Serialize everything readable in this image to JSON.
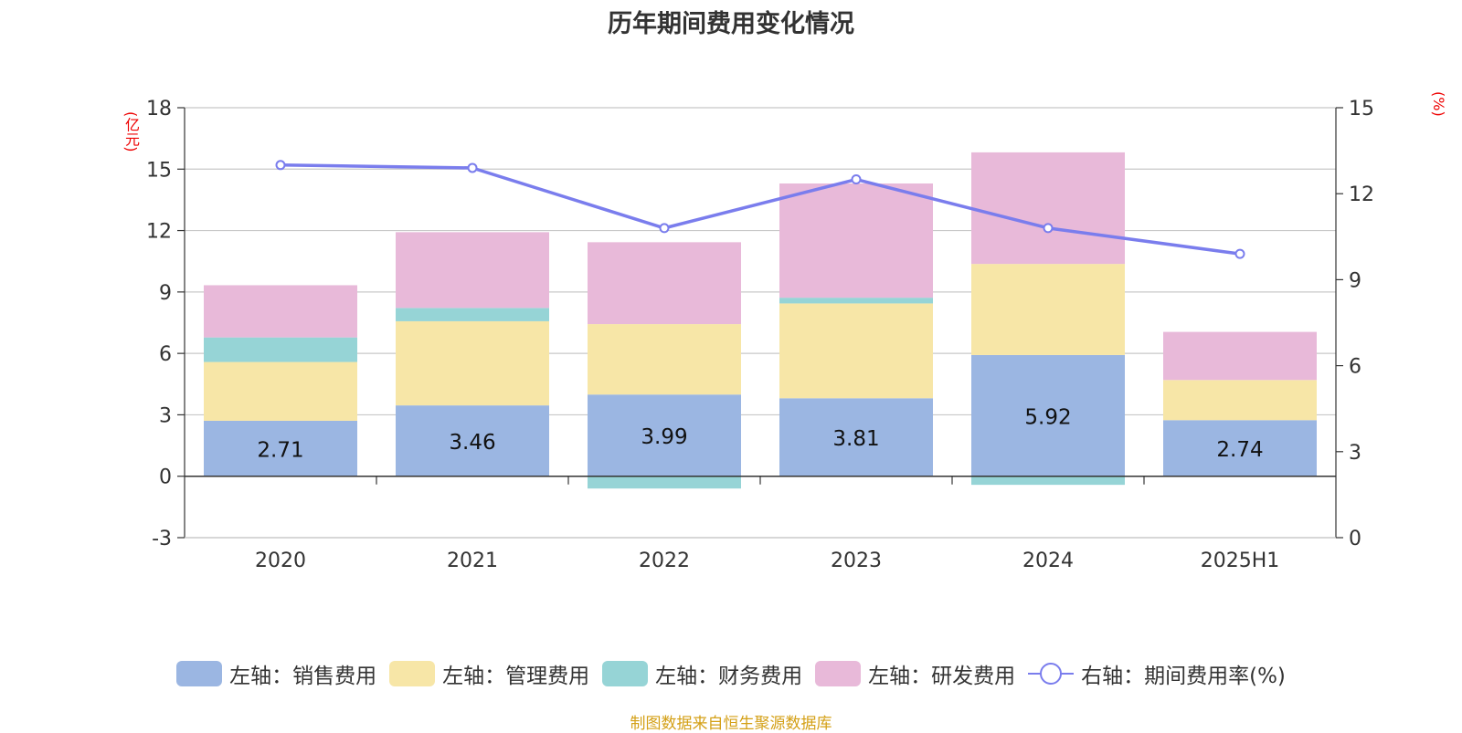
{
  "title": "历年期间费用变化情况",
  "left_unit": "(亿元)",
  "right_unit": "(%)",
  "source": "制图数据来自恒生聚源数据库",
  "colors": {
    "sales": "#9bb6e2",
    "admin": "#f7e6a7",
    "finance": "#96d4d6",
    "rd": "#e8b9d9",
    "rate": "#7a7ded",
    "axis": "#333333",
    "grid": "#c8c8c8"
  },
  "legend": [
    {
      "label": "左轴：销售费用",
      "color": "#9bb6e2",
      "kind": "bar"
    },
    {
      "label": "左轴：管理费用",
      "color": "#f7e6a7",
      "kind": "bar"
    },
    {
      "label": "左轴：财务费用",
      "color": "#96d4d6",
      "kind": "bar"
    },
    {
      "label": "左轴：研发费用",
      "color": "#e8b9d9",
      "kind": "bar"
    },
    {
      "label": "右轴：期间费用率(%)",
      "color": "#7a7ded",
      "kind": "line"
    }
  ],
  "chart_data": {
    "type": "bar",
    "stacked": true,
    "title": "历年期间费用变化情况",
    "categories": [
      "2020",
      "2021",
      "2022",
      "2023",
      "2024",
      "2025H1"
    ],
    "y_left": {
      "label": "(亿元)",
      "min": -3,
      "max": 18,
      "ticks": [
        -3,
        0,
        3,
        6,
        9,
        12,
        15,
        18
      ]
    },
    "y_right": {
      "label": "(%)",
      "min": 0,
      "max": 15,
      "ticks": [
        0,
        3,
        6,
        9,
        12,
        15
      ]
    },
    "series": [
      {
        "name": "左轴：销售费用",
        "axis": "left",
        "type": "bar",
        "values": [
          2.71,
          3.46,
          3.99,
          3.81,
          5.92,
          2.74
        ],
        "labels": [
          "2.71",
          "3.46",
          "3.99",
          "3.81",
          "5.92",
          "2.74"
        ]
      },
      {
        "name": "左轴：管理费用",
        "axis": "left",
        "type": "bar",
        "values": [
          2.87,
          4.11,
          3.44,
          4.63,
          4.45,
          1.96
        ]
      },
      {
        "name": "左轴：财务费用",
        "axis": "left",
        "type": "bar",
        "values": [
          1.2,
          0.65,
          -0.6,
          0.28,
          -0.42,
          0
        ]
      },
      {
        "name": "左轴：研发费用",
        "axis": "left",
        "type": "bar",
        "values": [
          2.55,
          3.7,
          4.0,
          5.58,
          5.45,
          2.35
        ]
      },
      {
        "name": "右轴：期间费用率(%)",
        "axis": "right",
        "type": "line",
        "values": [
          13.0,
          12.9,
          10.8,
          12.5,
          10.8,
          9.9
        ]
      }
    ],
    "grid": true,
    "legend_position": "bottom"
  }
}
